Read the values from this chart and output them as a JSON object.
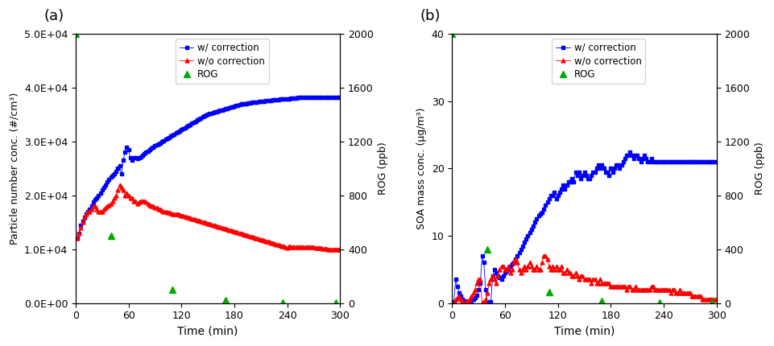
{
  "panel_a": {
    "title": "(a)",
    "ylabel_left": "Particle number conc. (#/cm³)",
    "ylabel_right": "ROG (ppb)",
    "xlabel": "Time (min)",
    "ylim_left": [
      0,
      50000
    ],
    "ylim_right": [
      0,
      2000
    ],
    "yticks_left": [
      0,
      10000,
      20000,
      30000,
      40000,
      50000
    ],
    "ytick_labels_left": [
      "0.0E+00",
      "1.0E+04",
      "2.0E+04",
      "3.0E+04",
      "4.0E+04",
      "5.0E+04"
    ],
    "yticks_right": [
      0,
      400,
      800,
      1200,
      1600,
      2000
    ],
    "xlim": [
      0,
      300
    ],
    "xticks": [
      0,
      60,
      120,
      180,
      240,
      300
    ],
    "blue_x": [
      2,
      4,
      6,
      8,
      10,
      12,
      14,
      16,
      18,
      20,
      22,
      24,
      26,
      28,
      30,
      32,
      34,
      36,
      38,
      40,
      42,
      44,
      46,
      48,
      50,
      52,
      54,
      56,
      58,
      60,
      62,
      64,
      66,
      68,
      70,
      72,
      74,
      76,
      78,
      80,
      82,
      84,
      86,
      88,
      90,
      92,
      94,
      96,
      98,
      100,
      102,
      104,
      106,
      108,
      110,
      112,
      114,
      116,
      118,
      120,
      122,
      124,
      126,
      128,
      130,
      132,
      134,
      136,
      138,
      140,
      142,
      144,
      146,
      148,
      150,
      152,
      154,
      156,
      158,
      160,
      162,
      164,
      166,
      168,
      170,
      172,
      174,
      176,
      178,
      180,
      182,
      184,
      186,
      188,
      190,
      192,
      194,
      196,
      198,
      200,
      202,
      204,
      206,
      208,
      210,
      212,
      214,
      216,
      218,
      220,
      222,
      224,
      226,
      228,
      230,
      232,
      234,
      236,
      238,
      240,
      242,
      244,
      246,
      248,
      250,
      252,
      254,
      256,
      258,
      260,
      262,
      264,
      266,
      268,
      270,
      272,
      274,
      276,
      278,
      280,
      282,
      284,
      286,
      288,
      290,
      292,
      294,
      296,
      298,
      300
    ],
    "blue_y": [
      12000,
      13000,
      14500,
      15200,
      16000,
      16500,
      17000,
      17500,
      18000,
      18800,
      19200,
      19500,
      20000,
      20500,
      21000,
      21500,
      22000,
      22500,
      23000,
      23500,
      23800,
      24000,
      24500,
      25000,
      25500,
      24000,
      26500,
      28000,
      29000,
      28500,
      27000,
      26500,
      27000,
      27000,
      26800,
      27000,
      27200,
      27500,
      27800,
      28000,
      28200,
      28500,
      28800,
      29000,
      29200,
      29400,
      29500,
      29700,
      30000,
      30200,
      30400,
      30600,
      30800,
      31000,
      31200,
      31400,
      31600,
      31800,
      32000,
      32200,
      32400,
      32600,
      32800,
      33000,
      33200,
      33400,
      33600,
      33800,
      34000,
      34200,
      34400,
      34600,
      34800,
      35000,
      35100,
      35200,
      35300,
      35400,
      35500,
      35600,
      35700,
      35800,
      35900,
      36000,
      36100,
      36200,
      36300,
      36400,
      36500,
      36600,
      36700,
      36800,
      36900,
      37000,
      37000,
      37100,
      37100,
      37200,
      37200,
      37300,
      37300,
      37400,
      37400,
      37500,
      37500,
      37500,
      37500,
      37600,
      37600,
      37700,
      37700,
      37800,
      37800,
      37800,
      37800,
      37900,
      37900,
      37900,
      38000,
      38000,
      38000,
      38100,
      38100,
      38100,
      38100,
      38200,
      38200,
      38200,
      38200,
      38200,
      38300,
      38300,
      38300,
      38300,
      38300,
      38300,
      38300,
      38300,
      38300,
      38300,
      38300,
      38300,
      38300,
      38300,
      38300,
      38300,
      38300,
      38300,
      38300,
      38300
    ],
    "red_x": [
      2,
      4,
      6,
      8,
      10,
      12,
      14,
      16,
      18,
      20,
      22,
      24,
      26,
      28,
      30,
      32,
      34,
      36,
      38,
      40,
      42,
      44,
      46,
      48,
      50,
      52,
      54,
      56,
      58,
      60,
      62,
      64,
      66,
      68,
      70,
      72,
      74,
      76,
      78,
      80,
      82,
      84,
      86,
      88,
      90,
      92,
      94,
      96,
      98,
      100,
      102,
      104,
      106,
      108,
      110,
      112,
      114,
      116,
      118,
      120,
      122,
      124,
      126,
      128,
      130,
      132,
      134,
      136,
      138,
      140,
      142,
      144,
      146,
      148,
      150,
      152,
      154,
      156,
      158,
      160,
      162,
      164,
      166,
      168,
      170,
      172,
      174,
      176,
      178,
      180,
      182,
      184,
      186,
      188,
      190,
      192,
      194,
      196,
      198,
      200,
      202,
      204,
      206,
      208,
      210,
      212,
      214,
      216,
      218,
      220,
      222,
      224,
      226,
      228,
      230,
      232,
      234,
      236,
      238,
      240,
      242,
      244,
      246,
      248,
      250,
      252,
      254,
      256,
      258,
      260,
      262,
      264,
      266,
      268,
      270,
      272,
      274,
      276,
      278,
      280,
      282,
      284,
      286,
      288,
      290,
      292,
      294,
      296,
      298,
      300
    ],
    "red_y": [
      12000,
      13000,
      14000,
      15000,
      16000,
      16500,
      17000,
      17000,
      17500,
      18000,
      18000,
      17500,
      17000,
      17000,
      17000,
      17500,
      17800,
      18000,
      18200,
      18500,
      19000,
      19500,
      20000,
      21000,
      22000,
      21500,
      21000,
      20000,
      20500,
      20000,
      19500,
      19500,
      19000,
      19000,
      18500,
      18800,
      19000,
      19000,
      19000,
      18800,
      18500,
      18200,
      18000,
      18000,
      17800,
      17800,
      17500,
      17500,
      17200,
      17000,
      17000,
      16800,
      16800,
      16700,
      16600,
      16600,
      16500,
      16500,
      16400,
      16300,
      16200,
      16100,
      16000,
      15900,
      15800,
      15700,
      15600,
      15500,
      15400,
      15300,
      15200,
      15100,
      15000,
      14900,
      14800,
      14700,
      14600,
      14500,
      14400,
      14300,
      14200,
      14100,
      14000,
      13900,
      13800,
      13700,
      13600,
      13500,
      13400,
      13300,
      13200,
      13100,
      13000,
      12900,
      12800,
      12700,
      12600,
      12500,
      12400,
      12300,
      12200,
      12100,
      12000,
      11900,
      11800,
      11700,
      11600,
      11500,
      11400,
      11300,
      11200,
      11100,
      11000,
      10900,
      10800,
      10700,
      10600,
      10500,
      10400,
      10300,
      10500,
      10400,
      10400,
      10400,
      10400,
      10400,
      10400,
      10400,
      10400,
      10400,
      10400,
      10400,
      10400,
      10400,
      10400,
      10300,
      10300,
      10300,
      10200,
      10100,
      10100,
      10100,
      10000,
      10000,
      10000,
      10000,
      10000,
      10000,
      10000,
      10000
    ],
    "rog_x": [
      0,
      40,
      110,
      170,
      235,
      295
    ],
    "rog_y_right": [
      2000,
      500,
      100,
      20,
      5,
      2
    ]
  },
  "panel_b": {
    "title": "(b)",
    "ylabel_left": "SOA mass conc. (μg/m³)",
    "ylabel_right": "ROG (ppb)",
    "xlabel": "Time (min)",
    "ylim_left": [
      0,
      40
    ],
    "ylim_right": [
      0,
      2000
    ],
    "yticks_left": [
      0,
      10,
      20,
      30,
      40
    ],
    "yticks_right": [
      0,
      400,
      800,
      1200,
      1600,
      2000
    ],
    "xlim": [
      0,
      300
    ],
    "xticks": [
      0,
      60,
      120,
      180,
      240,
      300
    ],
    "blue_x": [
      2,
      4,
      6,
      8,
      10,
      12,
      14,
      16,
      18,
      20,
      22,
      24,
      26,
      28,
      30,
      32,
      34,
      36,
      38,
      40,
      42,
      44,
      46,
      48,
      50,
      52,
      54,
      56,
      58,
      60,
      62,
      64,
      66,
      68,
      70,
      72,
      74,
      76,
      78,
      80,
      82,
      84,
      86,
      88,
      90,
      92,
      94,
      96,
      98,
      100,
      102,
      104,
      106,
      108,
      110,
      112,
      114,
      116,
      118,
      120,
      122,
      124,
      126,
      128,
      130,
      132,
      134,
      136,
      138,
      140,
      142,
      144,
      146,
      148,
      150,
      152,
      154,
      156,
      158,
      160,
      162,
      164,
      166,
      168,
      170,
      172,
      174,
      176,
      178,
      180,
      182,
      184,
      186,
      188,
      190,
      192,
      194,
      196,
      198,
      200,
      202,
      204,
      206,
      208,
      210,
      212,
      214,
      216,
      218,
      220,
      222,
      224,
      226,
      228,
      230,
      232,
      234,
      236,
      238,
      240,
      242,
      244,
      246,
      248,
      250,
      252,
      254,
      256,
      258,
      260,
      262,
      264,
      266,
      268,
      270,
      272,
      274,
      276,
      278,
      280,
      282,
      284,
      286,
      288,
      290,
      292,
      294,
      296,
      298,
      300
    ],
    "blue_y": [
      0.2,
      3.5,
      2.5,
      1.5,
      1.0,
      0.5,
      0.3,
      0.2,
      0.1,
      0.2,
      0.3,
      0.5,
      0.8,
      1.2,
      2.0,
      3.0,
      7.0,
      6.0,
      2.0,
      0.2,
      0.1,
      0.2,
      4.0,
      5.0,
      4.5,
      4.0,
      3.8,
      3.5,
      4.0,
      4.5,
      4.8,
      5.0,
      5.5,
      5.8,
      6.0,
      6.5,
      7.0,
      7.5,
      8.0,
      8.5,
      9.0,
      9.5,
      10.0,
      10.5,
      11.0,
      11.5,
      12.0,
      12.5,
      13.0,
      13.2,
      13.5,
      14.0,
      14.5,
      15.0,
      15.5,
      16.0,
      16.0,
      16.5,
      15.5,
      16.0,
      16.5,
      17.0,
      17.5,
      17.0,
      17.5,
      18.0,
      18.0,
      18.5,
      18.0,
      19.5,
      19.0,
      19.5,
      18.5,
      19.0,
      19.5,
      19.0,
      18.5,
      18.5,
      19.0,
      19.5,
      19.5,
      20.0,
      20.5,
      20.0,
      20.5,
      20.0,
      19.5,
      19.5,
      19.0,
      20.0,
      19.5,
      20.0,
      20.5,
      20.5,
      20.0,
      20.5,
      21.0,
      21.5,
      22.0,
      22.0,
      22.5,
      22.0,
      21.5,
      22.0,
      22.0,
      21.5,
      21.0,
      21.5,
      22.0,
      21.5,
      21.0,
      21.0,
      21.5,
      21.0,
      21.0,
      21.0,
      21.0,
      21.0,
      21.0,
      21.0,
      21.0,
      21.0,
      21.0,
      21.0,
      21.0,
      21.0,
      21.0,
      21.0,
      21.0,
      21.0,
      21.0,
      21.0,
      21.0,
      21.0,
      21.0,
      21.0,
      21.0,
      21.0,
      21.0,
      21.0,
      21.0,
      21.0,
      21.0,
      21.0,
      21.0,
      21.0,
      21.0,
      21.0,
      21.0,
      21.0
    ],
    "red_x": [
      2,
      4,
      6,
      8,
      10,
      12,
      14,
      16,
      18,
      20,
      22,
      24,
      26,
      28,
      30,
      32,
      34,
      36,
      38,
      40,
      42,
      44,
      46,
      48,
      50,
      52,
      54,
      56,
      58,
      60,
      62,
      64,
      66,
      68,
      70,
      72,
      74,
      76,
      78,
      80,
      82,
      84,
      86,
      88,
      90,
      92,
      94,
      96,
      98,
      100,
      102,
      104,
      106,
      108,
      110,
      112,
      114,
      116,
      118,
      120,
      122,
      124,
      126,
      128,
      130,
      132,
      134,
      136,
      138,
      140,
      142,
      144,
      146,
      148,
      150,
      152,
      154,
      156,
      158,
      160,
      162,
      164,
      166,
      168,
      170,
      172,
      174,
      176,
      178,
      180,
      182,
      184,
      186,
      188,
      190,
      192,
      194,
      196,
      198,
      200,
      202,
      204,
      206,
      208,
      210,
      212,
      214,
      216,
      218,
      220,
      222,
      224,
      226,
      228,
      230,
      232,
      234,
      236,
      238,
      240,
      242,
      244,
      246,
      248,
      250,
      252,
      254,
      256,
      258,
      260,
      262,
      264,
      266,
      268,
      270,
      272,
      274,
      276,
      278,
      280,
      282,
      284,
      286,
      288,
      290,
      292,
      294,
      296,
      298,
      300
    ],
    "red_y": [
      0.1,
      0.5,
      0.8,
      1.0,
      0.5,
      0.2,
      0.1,
      0.2,
      0.3,
      0.5,
      1.0,
      1.5,
      2.0,
      3.0,
      3.5,
      3.5,
      0.1,
      0.2,
      0.5,
      1.5,
      3.0,
      3.5,
      4.0,
      3.5,
      3.0,
      4.0,
      5.0,
      5.5,
      5.5,
      5.0,
      5.0,
      5.5,
      4.5,
      5.0,
      6.0,
      6.5,
      6.0,
      5.0,
      4.5,
      5.0,
      5.5,
      5.0,
      5.5,
      6.0,
      5.5,
      5.0,
      5.0,
      5.5,
      5.0,
      5.0,
      6.0,
      7.0,
      7.0,
      6.5,
      5.5,
      5.0,
      5.5,
      5.0,
      5.5,
      5.0,
      5.0,
      5.5,
      4.5,
      4.5,
      5.0,
      4.5,
      4.5,
      4.0,
      4.0,
      4.5,
      4.0,
      3.5,
      4.0,
      4.0,
      3.5,
      3.5,
      3.5,
      3.5,
      3.0,
      3.5,
      3.5,
      3.0,
      3.0,
      3.5,
      3.0,
      3.0,
      3.0,
      3.0,
      3.0,
      2.5,
      2.5,
      2.5,
      2.5,
      2.5,
      2.5,
      2.5,
      2.5,
      2.5,
      2.0,
      2.5,
      2.5,
      2.0,
      2.0,
      2.5,
      2.0,
      2.0,
      2.0,
      2.0,
      2.0,
      2.0,
      2.0,
      2.0,
      2.5,
      2.5,
      2.0,
      2.0,
      2.0,
      2.0,
      2.0,
      2.0,
      2.0,
      2.0,
      2.0,
      1.5,
      2.0,
      2.0,
      1.5,
      1.5,
      2.0,
      1.5,
      1.5,
      1.5,
      1.5,
      1.5,
      1.5,
      1.0,
      1.0,
      1.0,
      1.0,
      1.0,
      1.0,
      0.5,
      0.5,
      0.5,
      0.5,
      0.5,
      0.5,
      0.5,
      0.5,
      0.5
    ],
    "rog_x": [
      0,
      40,
      110,
      170,
      235,
      295
    ],
    "rog_y_right": [
      2000,
      400,
      80,
      15,
      3,
      1
    ]
  },
  "colors": {
    "blue": "#0000FF",
    "red": "#FF0000",
    "green": "#00AA00"
  }
}
